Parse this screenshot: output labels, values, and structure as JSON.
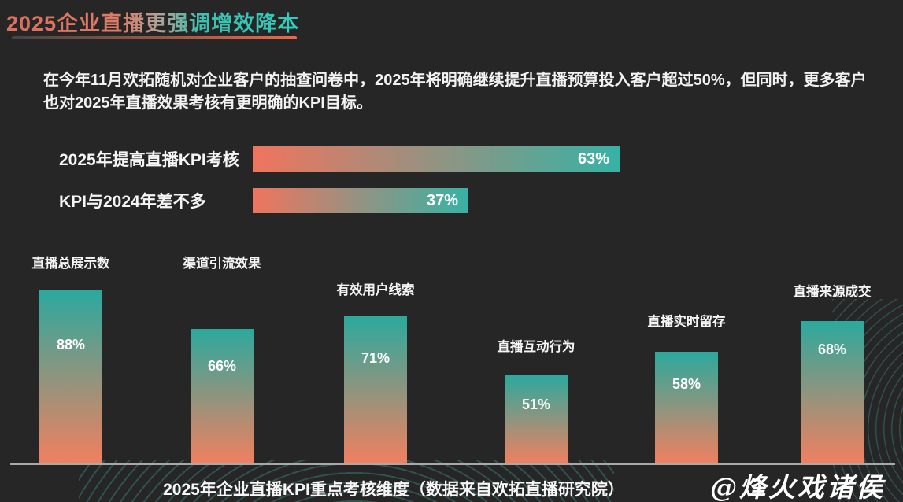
{
  "title": "2025企业直播更强调增效降本",
  "intro": "在今年11月欢拓随机对企业客户的抽查问卷中，2025年将明确继续提升直播预算投入客户超过50%，但同时，更多客户也对2025年直播效果考核有更明确的KPI目标。",
  "watermark": "@烽火戏诸侯",
  "colors": {
    "background": "#262626",
    "text": "#f5f5f5",
    "coral": "#f0745e",
    "teal": "#2fb3a6",
    "title_gradient_start": "#dc6e5d",
    "title_gradient_end": "#2fcdbd",
    "baseline": "#a9a9a9"
  },
  "chart_data": [
    {
      "type": "bar",
      "orientation": "horizontal",
      "categories": [
        "2025年提高直播KPI考核",
        "KPI与2024年差不多"
      ],
      "values": [
        63,
        37
      ],
      "value_labels": [
        "63%",
        "37%"
      ],
      "xlim": [
        0,
        100
      ],
      "unit": "%",
      "bar_gradient": [
        "#f0745e",
        "#37b2a5"
      ]
    },
    {
      "type": "bar",
      "orientation": "vertical",
      "title": "2025年企业直播KPI重点考核维度（数据来自欢拓直播研究院）",
      "categories": [
        "直播总展示数",
        "渠道引流效果",
        "有效用户线索",
        "直播互动行为",
        "直播实时留存",
        "直播来源成交"
      ],
      "values": [
        88,
        66,
        71,
        51,
        58,
        68
      ],
      "value_labels": [
        "88%",
        "66%",
        "71%",
        "51%",
        "58%",
        "68%"
      ],
      "ylim": [
        0,
        100
      ],
      "unit": "%",
      "bar_gradient": [
        "#2ba99e",
        "#f2805f"
      ]
    }
  ]
}
